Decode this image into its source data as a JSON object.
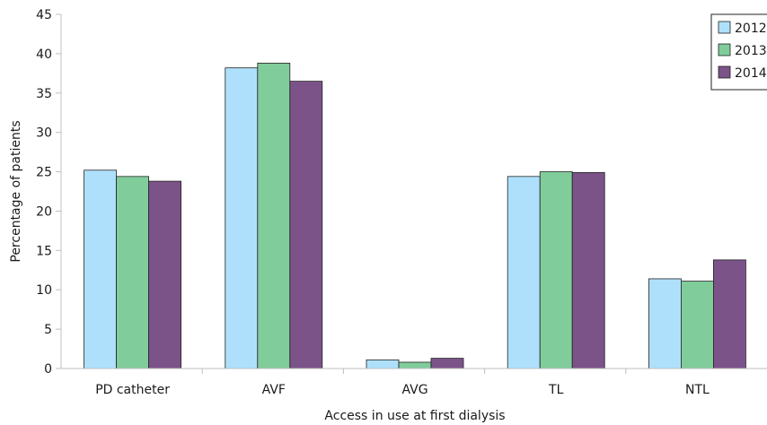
{
  "chart_data": {
    "type": "bar",
    "title": "",
    "xlabel": "Access in use at first dialysis",
    "ylabel": "Percentage of patients",
    "ylim": [
      0,
      45
    ],
    "yticks": [
      0,
      5,
      10,
      15,
      20,
      25,
      30,
      35,
      40,
      45
    ],
    "categories": [
      "PD catheter",
      "AVF",
      "AVG",
      "TL",
      "NTL"
    ],
    "series": [
      {
        "name": "2012",
        "color": "#aee0fb",
        "values": [
          25.2,
          38.2,
          1.1,
          24.4,
          11.4
        ]
      },
      {
        "name": "2013",
        "color": "#80cc9b",
        "values": [
          24.4,
          38.8,
          0.8,
          25.0,
          11.1
        ]
      },
      {
        "name": "2014",
        "color": "#7b5389",
        "values": [
          23.8,
          36.5,
          1.3,
          24.9,
          13.8
        ]
      }
    ],
    "grid": false,
    "legend_position": "top-right"
  }
}
